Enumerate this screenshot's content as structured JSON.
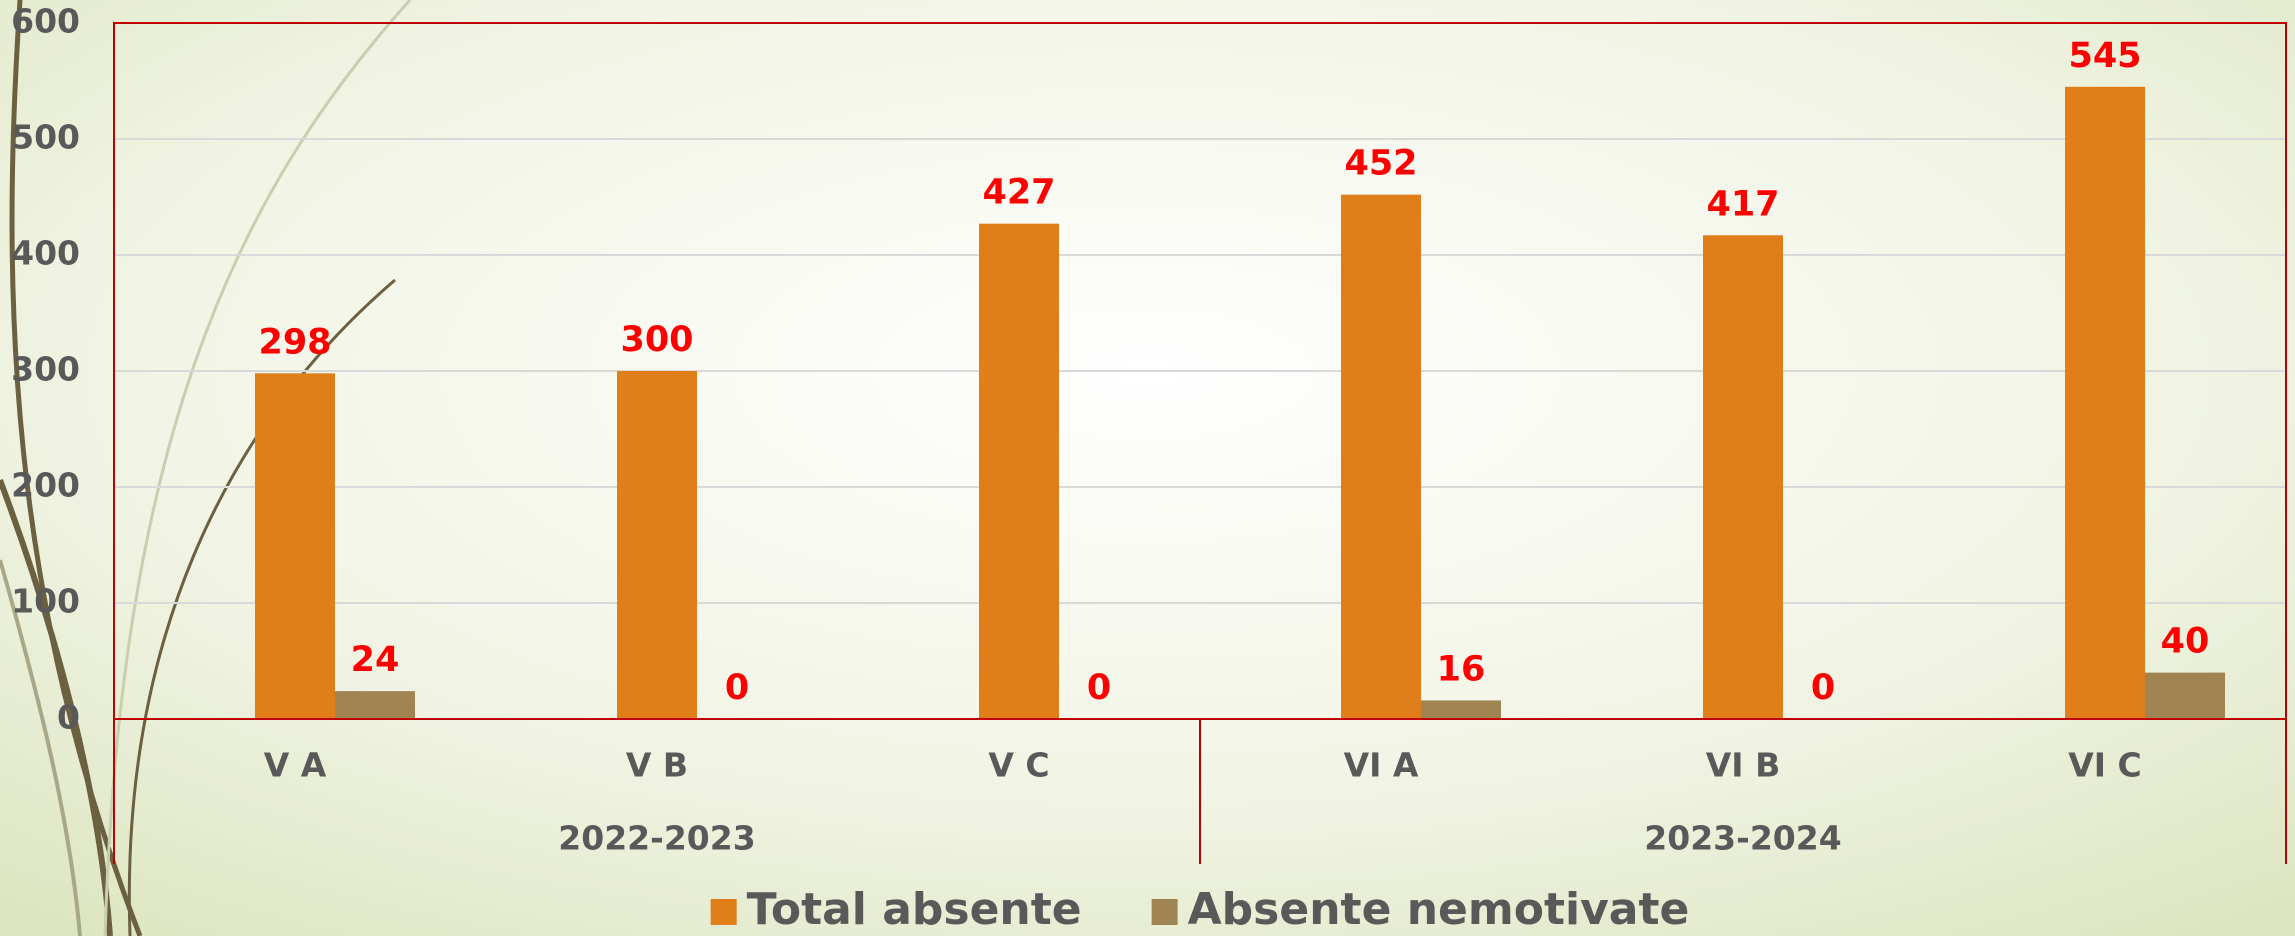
{
  "chart_data": {
    "type": "bar",
    "categories": [
      "V A",
      "V B",
      "V C",
      "VI A",
      "VI B",
      "VI C"
    ],
    "category_groups": [
      "2022-2023",
      "2022-2023",
      "2022-2023",
      "2023-2024",
      "2023-2024",
      "2023-2024"
    ],
    "series": [
      {
        "name": "Total absente",
        "color": "#e07f1a",
        "values": [
          298,
          300,
          427,
          452,
          417,
          545
        ]
      },
      {
        "name": "Absente nemotivate",
        "color": "#a08552",
        "values": [
          24,
          0,
          0,
          16,
          0,
          40
        ]
      }
    ],
    "ylim": [
      0,
      600
    ],
    "yticks": [
      0,
      100,
      200,
      300,
      400,
      500,
      600
    ],
    "grid": true,
    "legend": "bottom"
  }
}
